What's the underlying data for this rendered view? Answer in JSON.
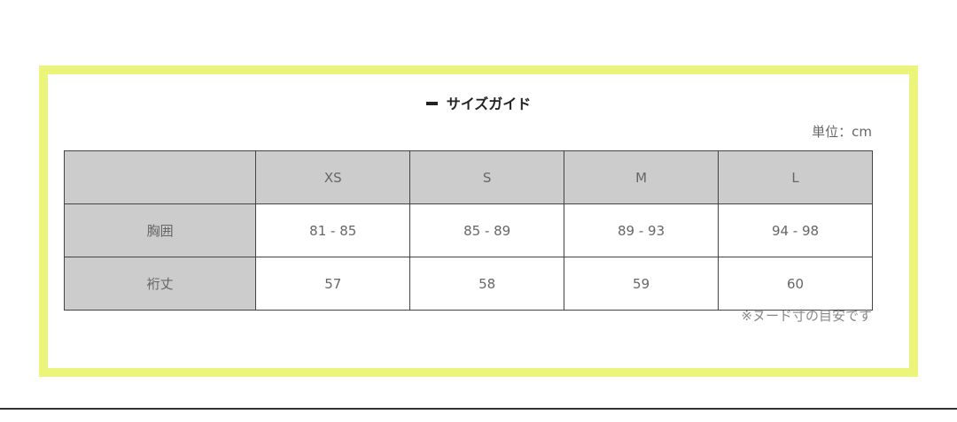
{
  "title": "サイズガイド",
  "unit": "単位：cm",
  "table": {
    "columns": [
      "",
      "XS",
      "S",
      "M",
      "L"
    ],
    "rows": [
      {
        "label": "胸囲",
        "values": [
          "81 - 85",
          "85 - 89",
          "89 - 93",
          "94 - 98"
        ]
      },
      {
        "label": "裄丈",
        "values": [
          "57",
          "58",
          "59",
          "60"
        ]
      }
    ]
  },
  "note": "※ヌード寸の目安です",
  "colors": {
    "frame": "#ebf57c",
    "header_bg": "#cccccc"
  }
}
